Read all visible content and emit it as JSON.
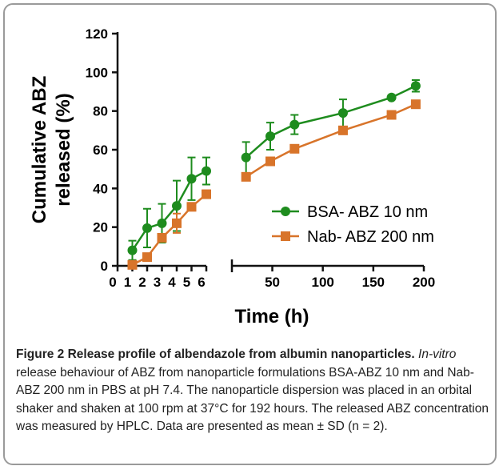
{
  "chart_data": {
    "type": "line",
    "ylabel_lines": [
      "Cumulative ABZ",
      "released (%)"
    ],
    "xlabel": "Time (h)",
    "x": [
      1,
      2,
      3,
      4,
      5,
      6,
      24,
      48,
      72,
      120,
      168,
      192
    ],
    "x_segments": [
      {
        "xlim": [
          0,
          6
        ],
        "xticks": [
          0,
          1,
          2,
          3,
          4,
          5,
          6
        ]
      },
      {
        "xlim": [
          10,
          200
        ],
        "xticks": [
          50,
          100,
          150,
          200
        ]
      }
    ],
    "ylim": [
      0,
      120
    ],
    "yticks": [
      0,
      20,
      40,
      60,
      80,
      100,
      120
    ],
    "legend": "right",
    "series": [
      {
        "name": "BSA- ABZ 10 nm",
        "color": "#1e8c1e",
        "marker": "circle",
        "values": [
          8,
          19.5,
          22,
          31,
          45,
          49,
          56,
          67,
          73,
          79,
          87,
          93
        ],
        "errors": [
          5,
          10,
          10,
          13,
          11,
          7,
          8,
          7,
          5,
          7,
          1,
          3
        ]
      },
      {
        "name": "Nab- ABZ 200 nm",
        "color": "#d8742a",
        "marker": "square",
        "values": [
          0.5,
          4.5,
          14.5,
          22,
          30.5,
          37,
          46,
          54,
          60.5,
          70,
          78,
          83.5
        ],
        "errors": [
          1,
          1,
          2,
          5,
          2,
          2,
          1,
          1,
          1,
          1,
          1,
          1
        ]
      }
    ]
  },
  "caption": {
    "title": "Figure 2 Release profile of albendazole from albumin nanoparticles.",
    "italic": "In-vitro",
    "text": " release behaviour of ABZ from nanoparticle formulations BSA-ABZ 10 nm and Nab-ABZ 200 nm in PBS at pH 7.4. The nanoparticle dispersion was placed in an orbital shaker and shaken at 100 rpm at 37°C for 192 hours. The released ABZ concentration was measured by HPLC. Data are presented as mean ± SD (n = 2)."
  }
}
